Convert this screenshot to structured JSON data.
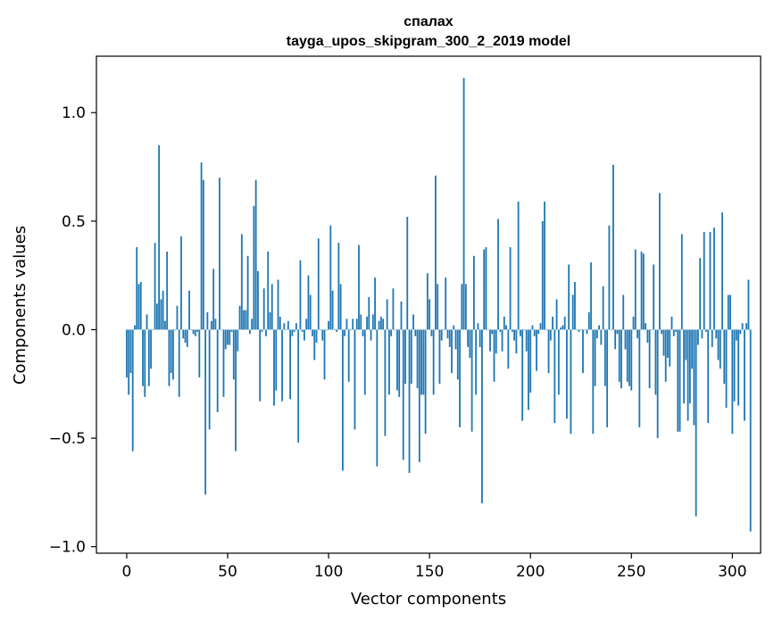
{
  "chart_data": {
    "type": "bar",
    "title": "спалах",
    "subtitle": "tayga_upos_skipgram_300_2_2019 model",
    "xlabel": "Vector components",
    "ylabel": "Components values",
    "xlim": [
      -15,
      314
    ],
    "ylim": [
      -1.03,
      1.26
    ],
    "xticks": [
      0,
      50,
      100,
      150,
      200,
      250,
      300
    ],
    "xtick_labels": [
      "0",
      "50",
      "100",
      "150",
      "200",
      "250",
      "300"
    ],
    "yticks": [
      -1.0,
      -0.5,
      0.0,
      0.5,
      1.0
    ],
    "ytick_labels": [
      "−1.0",
      "−0.5",
      "0.0",
      "0.5",
      "1.0"
    ],
    "bar_color": "#1f77b4",
    "grid": false,
    "series": [
      {
        "name": "спалах",
        "values": [
          -0.22,
          -0.3,
          -0.2,
          -0.56,
          0.02,
          0.38,
          0.21,
          0.22,
          -0.26,
          -0.31,
          0.07,
          -0.26,
          -0.18,
          0.0,
          0.4,
          0.12,
          0.85,
          0.14,
          0.18,
          0.04,
          0.36,
          -0.26,
          -0.2,
          -0.23,
          0.0,
          0.11,
          -0.31,
          0.43,
          -0.04,
          -0.06,
          -0.08,
          0.18,
          0.0,
          -0.02,
          -0.03,
          -0.01,
          -0.22,
          0.77,
          0.69,
          -0.76,
          0.08,
          -0.46,
          0.04,
          0.28,
          0.05,
          -0.38,
          0.7,
          0.0,
          -0.31,
          -0.09,
          -0.07,
          -0.07,
          -0.01,
          -0.23,
          -0.56,
          -0.1,
          0.11,
          0.44,
          0.09,
          0.09,
          0.34,
          -0.02,
          0.05,
          0.57,
          0.69,
          0.27,
          -0.33,
          -0.01,
          0.19,
          -0.03,
          0.36,
          0.08,
          0.21,
          -0.35,
          -0.28,
          0.23,
          0.06,
          -0.33,
          0.03,
          0.0,
          0.04,
          -0.32,
          -0.03,
          -0.01,
          0.03,
          -0.52,
          0.32,
          -0.01,
          -0.05,
          0.05,
          0.25,
          0.16,
          -0.03,
          -0.14,
          -0.06,
          0.42,
          0.0,
          -0.05,
          -0.23,
          0.0,
          0.04,
          0.48,
          0.18,
          0.0,
          -0.01,
          0.4,
          0.21,
          -0.65,
          -0.03,
          0.05,
          -0.24,
          0.0,
          0.05,
          -0.46,
          0.05,
          0.39,
          0.07,
          -0.03,
          -0.3,
          0.06,
          0.15,
          -0.05,
          0.07,
          0.24,
          -0.63,
          0.04,
          0.06,
          0.05,
          -0.49,
          0.14,
          -0.3,
          -0.03,
          0.19,
          0.0,
          -0.28,
          -0.31,
          0.13,
          -0.6,
          -0.25,
          0.52,
          -0.66,
          -0.25,
          0.07,
          -0.03,
          -0.27,
          -0.61,
          -0.3,
          -0.3,
          -0.48,
          0.26,
          0.14,
          -0.03,
          -0.3,
          0.71,
          0.21,
          -0.25,
          -0.05,
          0.0,
          0.24,
          -0.04,
          -0.08,
          -0.2,
          0.02,
          -0.09,
          -0.23,
          -0.45,
          0.21,
          1.16,
          0.21,
          -0.08,
          -0.13,
          -0.47,
          0.34,
          -0.3,
          0.03,
          -0.08,
          -0.8,
          0.37,
          0.38,
          0.0,
          -0.1,
          -0.02,
          -0.24,
          -0.11,
          0.51,
          -0.01,
          -0.1,
          0.06,
          0.02,
          -0.18,
          0.38,
          -0.01,
          -0.05,
          -0.11,
          0.59,
          -0.03,
          -0.42,
          0.0,
          -0.1,
          -0.37,
          -0.29,
          0.02,
          -0.03,
          -0.19,
          -0.02,
          0.03,
          0.5,
          0.59,
          0.0,
          -0.2,
          -0.05,
          0.06,
          -0.43,
          0.14,
          -0.3,
          0.01,
          0.02,
          0.06,
          -0.41,
          0.3,
          -0.48,
          0.16,
          0.22,
          0.0,
          -0.01,
          0.0,
          -0.2,
          0.0,
          -0.02,
          0.08,
          0.31,
          -0.48,
          -0.26,
          -0.04,
          0.02,
          -0.07,
          0.2,
          -0.26,
          -0.45,
          0.48,
          0.0,
          0.76,
          -0.09,
          -0.02,
          -0.24,
          -0.27,
          0.16,
          -0.09,
          -0.24,
          -0.26,
          -0.28,
          0.06,
          0.37,
          -0.04,
          -0.45,
          0.36,
          0.35,
          0.03,
          -0.06,
          -0.27,
          0.0,
          0.3,
          -0.3,
          -0.5,
          0.63,
          -0.02,
          -0.12,
          -0.24,
          -0.13,
          -0.17,
          0.06,
          -0.03,
          -0.01,
          -0.47,
          -0.47,
          0.44,
          -0.34,
          -0.14,
          -0.42,
          -0.34,
          -0.18,
          -0.44,
          -0.86,
          -0.07,
          0.33,
          -0.04,
          0.45,
          -0.01,
          -0.43,
          0.45,
          -0.08,
          0.47,
          -0.04,
          -0.14,
          -0.18,
          0.54,
          -0.25,
          -0.36,
          0.16,
          0.16,
          -0.48,
          -0.33,
          -0.05,
          -0.35,
          -0.02,
          0.03,
          -0.42,
          0.03,
          0.23,
          -0.93
        ]
      }
    ]
  }
}
